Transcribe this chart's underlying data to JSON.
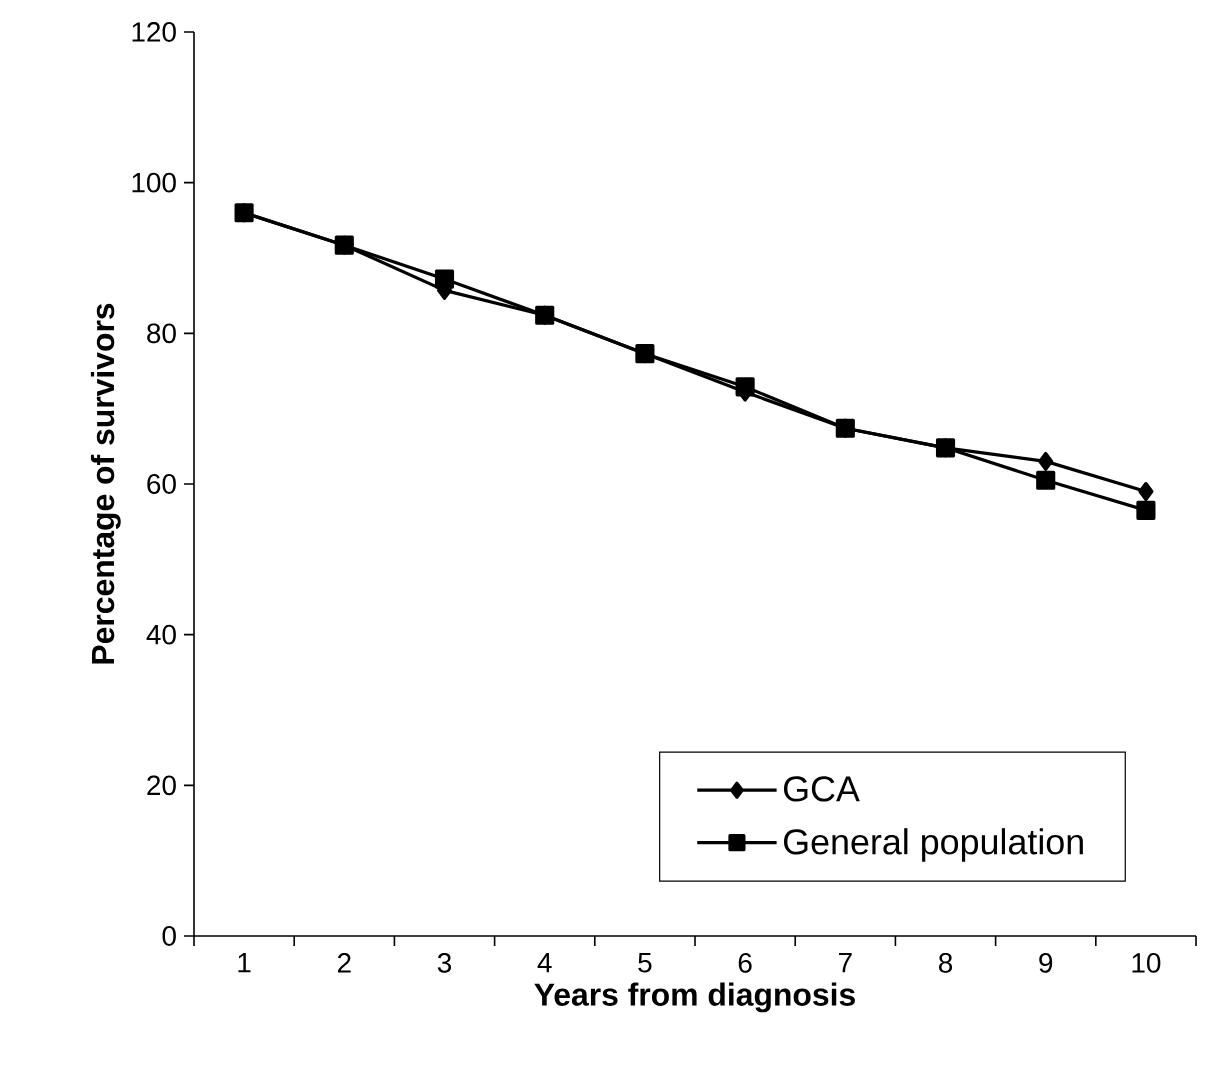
{
  "chart_data": {
    "type": "line",
    "xlabel": "Years from diagnosis",
    "ylabel": "Percentage of survivors",
    "categories": [
      "1",
      "2",
      "3",
      "4",
      "5",
      "6",
      "7",
      "8",
      "9",
      "10"
    ],
    "ylim": [
      0,
      120
    ],
    "yticks": [
      0,
      20,
      40,
      60,
      80,
      100,
      120
    ],
    "grid": false,
    "legend": "bottom right",
    "series": [
      {
        "name": "GCA",
        "color": "#000000",
        "marker": "diamond",
        "values": [
          96,
          91.7,
          85.7,
          82.4,
          77.3,
          72.2,
          67.4,
          64.8,
          63.0,
          59.0
        ]
      },
      {
        "name": "General  population",
        "color": "#000000",
        "marker": "square",
        "values": [
          96,
          91.7,
          87.2,
          82.4,
          77.3,
          72.9,
          67.4,
          64.8,
          60.5,
          56.5
        ]
      }
    ]
  }
}
